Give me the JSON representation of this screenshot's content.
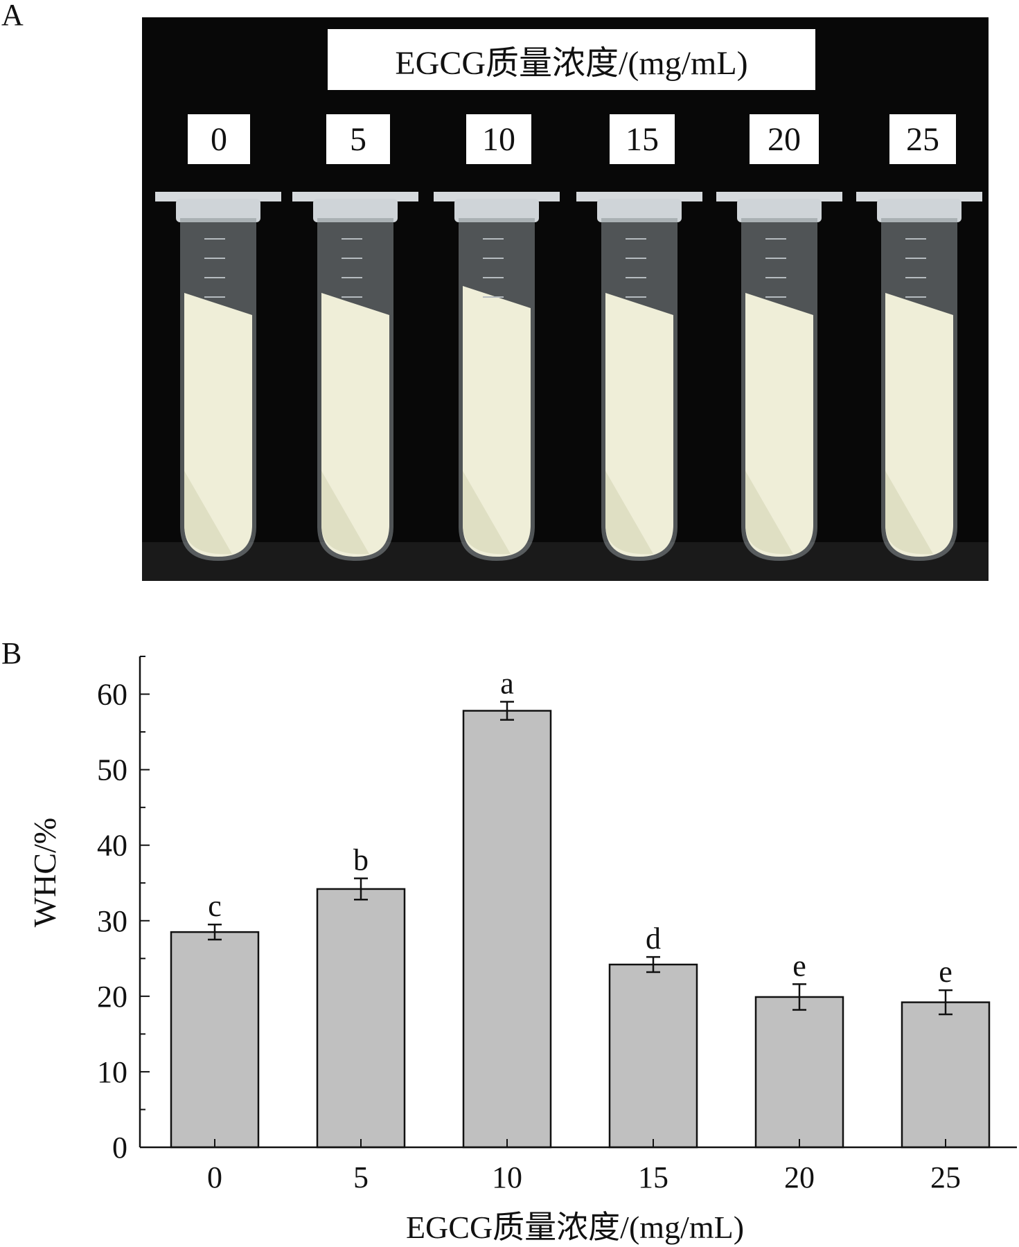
{
  "panels": {
    "a_label": "A",
    "b_label": "B"
  },
  "photo": {
    "title": "EGCG质量浓度/(mg/mL)",
    "concentrations": [
      "0",
      "5",
      "10",
      "15",
      "20",
      "25"
    ],
    "colors": {
      "background": "#080808",
      "gel": "#efeed8",
      "liquid": "#dcdcc0",
      "tube": "#c9cfd4"
    }
  },
  "chart_data": {
    "type": "bar",
    "categories": [
      "0",
      "5",
      "10",
      "15",
      "20",
      "25"
    ],
    "values": [
      28.5,
      34.2,
      57.8,
      24.2,
      19.9,
      19.2
    ],
    "errors": [
      1.0,
      1.4,
      1.2,
      1.0,
      1.7,
      1.6
    ],
    "significance": [
      "c",
      "b",
      "a",
      "d",
      "e",
      "e"
    ],
    "xlabel": "EGCG质量浓度/(mg/mL)",
    "ylabel": "WHC/%",
    "ylim": [
      0,
      65
    ],
    "yticks": [
      0,
      10,
      20,
      30,
      40,
      50,
      60
    ],
    "bar_color": "#c0c0c0",
    "grid": false
  }
}
